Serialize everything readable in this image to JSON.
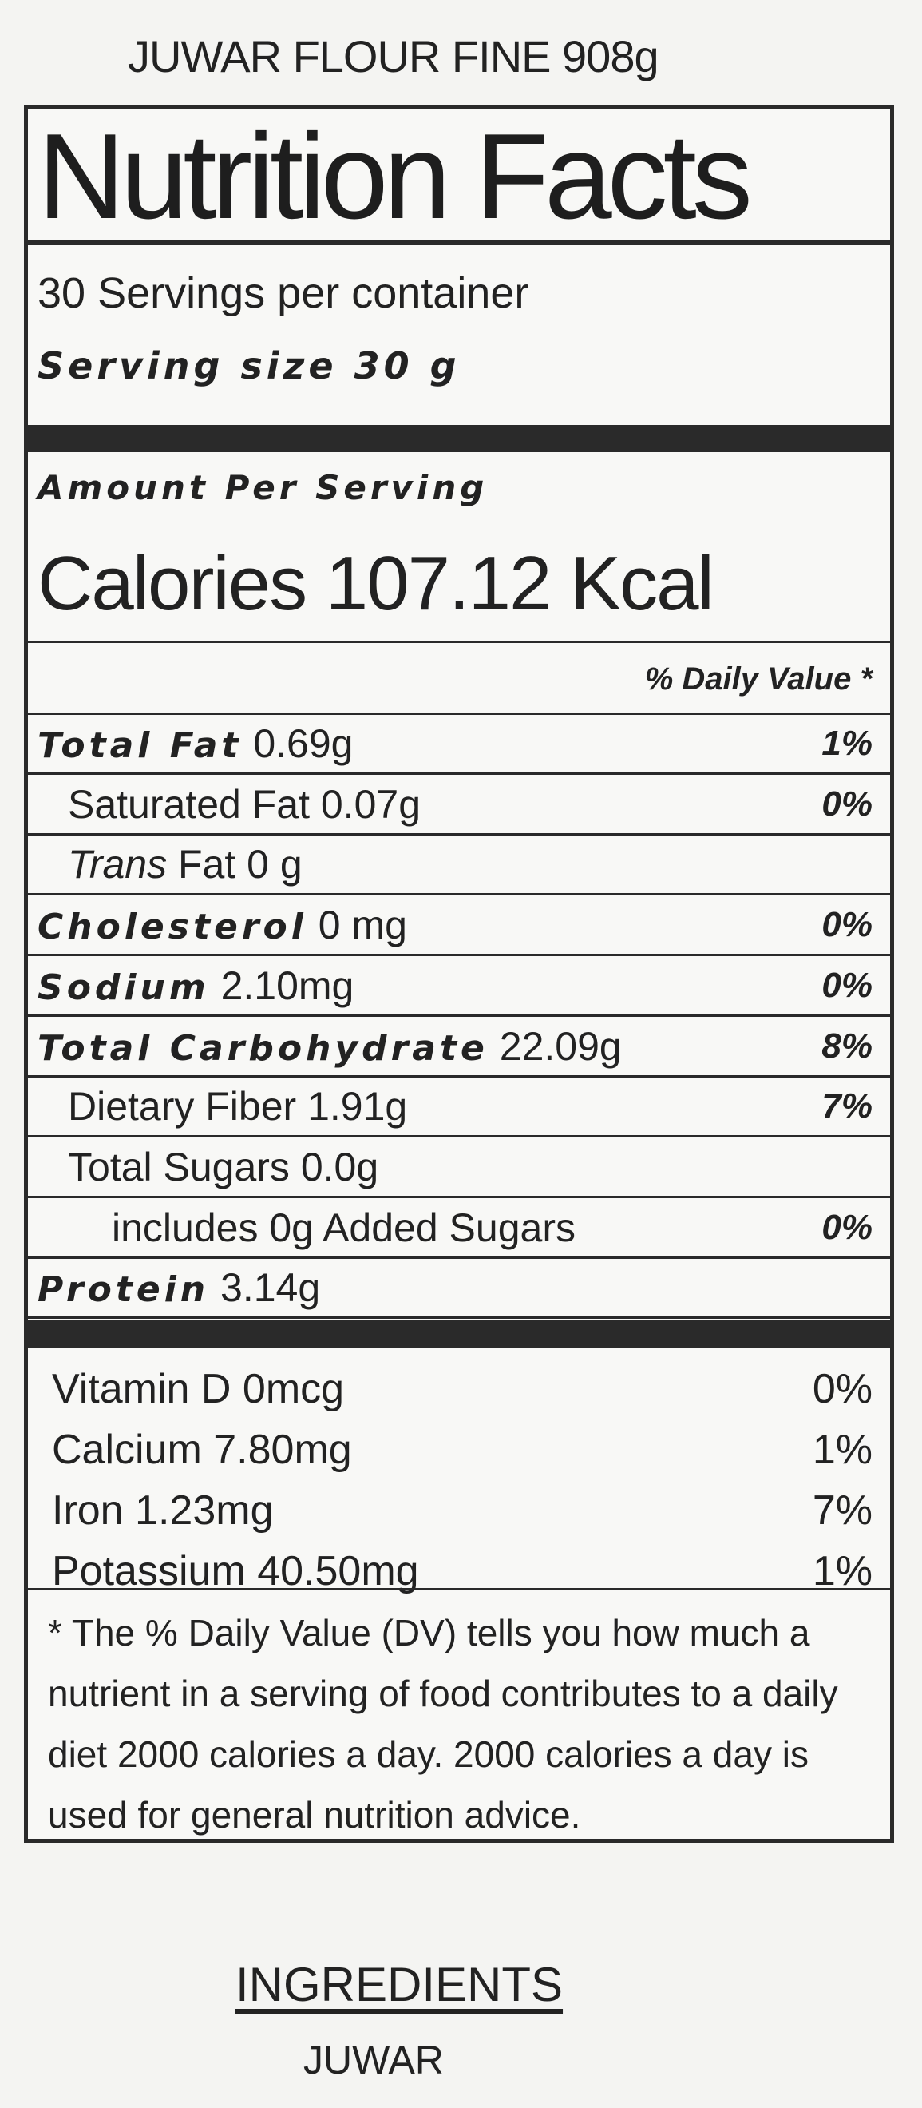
{
  "product_name": "JUWAR FLOUR FINE 908g",
  "label": {
    "title": "Nutrition Facts",
    "servings_per_container": "30 Servings per container",
    "serving_size": "Serving size 30 g",
    "amount_per_serving": "Amount Per Serving",
    "calories": "Calories 107.12 Kcal",
    "daily_value_header": "% Daily Value *",
    "nutrients": [
      {
        "name": "Total Fat",
        "amount": "0.69g",
        "dv": "1%"
      },
      {
        "name": "Saturated Fat",
        "amount": "0.07g",
        "dv": "0%"
      },
      {
        "name": "Trans",
        "amount": "Fat 0 g",
        "dv": ""
      },
      {
        "name": "Cholesterol",
        "amount": "0 mg",
        "dv": "0%"
      },
      {
        "name": "Sodium",
        "amount": "2.10mg",
        "dv": "0%"
      },
      {
        "name": "Total Carbohydrate",
        "amount": "22.09g",
        "dv": "8%"
      },
      {
        "name": "Dietary Fiber",
        "amount": "1.91g",
        "dv": "7%"
      },
      {
        "name": "Total Sugars",
        "amount": "0.0g",
        "dv": ""
      },
      {
        "name": "includes 0g Added Sugars",
        "amount": "",
        "dv": "0%"
      },
      {
        "name": "Protein",
        "amount": "3.14g",
        "dv": ""
      }
    ],
    "vitamins": [
      {
        "label": "Vitamin D 0mcg",
        "dv": "0%"
      },
      {
        "label": "Calcium 7.80mg",
        "dv": "1%"
      },
      {
        "label": "Iron 1.23mg",
        "dv": "7%"
      },
      {
        "label": "Potassium 40.50mg",
        "dv": "1%"
      }
    ],
    "footnote": "* The % Daily Value (DV) tells you how much a nutrient in a serving of food contributes to a daily diet 2000 calories a day. 2000 calories a day is used for general nutrition advice."
  },
  "ingredients": {
    "heading": "INGREDIENTS",
    "text": "JUWAR"
  }
}
